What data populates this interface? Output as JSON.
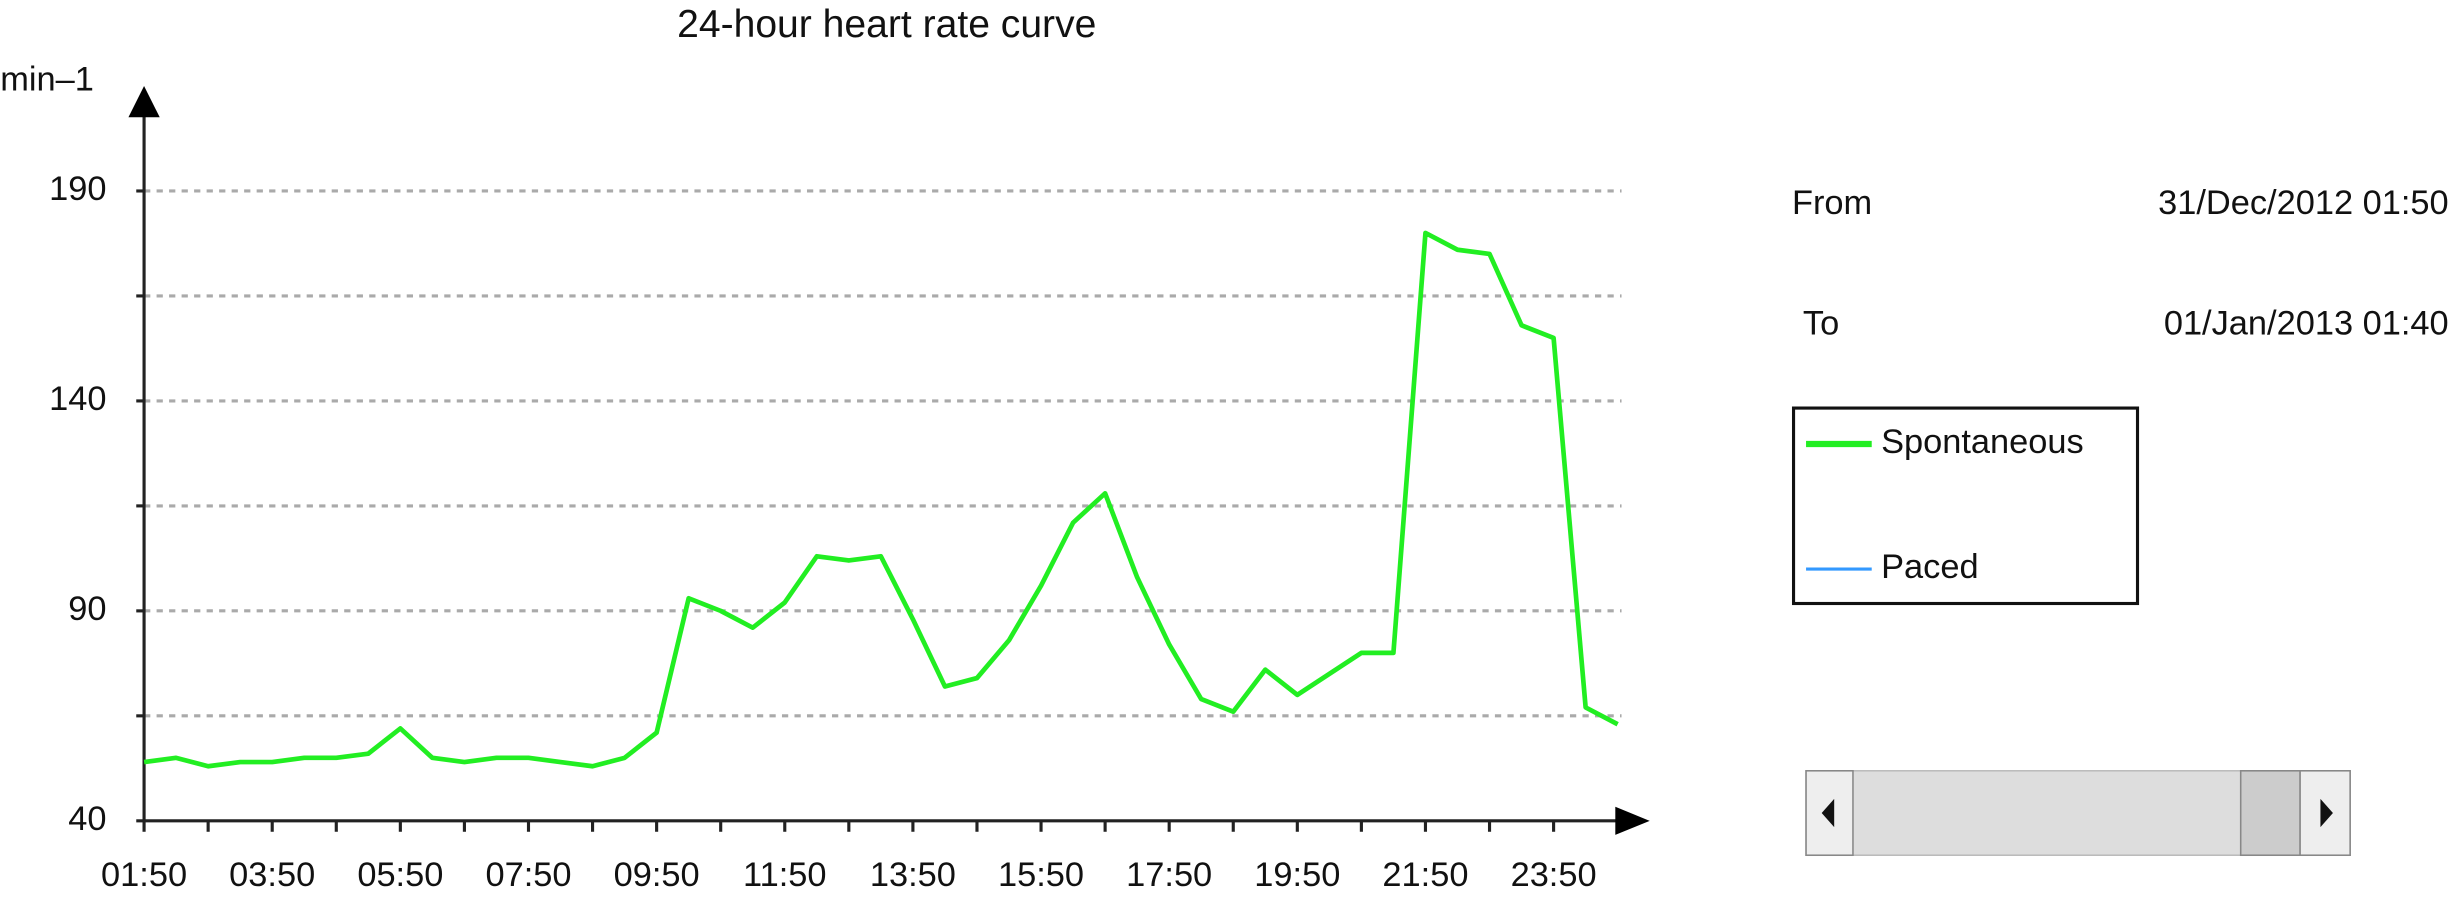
{
  "chart_data": {
    "type": "line",
    "title": "24-hour heart rate curve",
    "y_label": "min–1",
    "x": [
      "01:50",
      "02:20",
      "02:50",
      "03:20",
      "03:50",
      "04:20",
      "04:50",
      "05:20",
      "05:50",
      "06:20",
      "06:50",
      "07:20",
      "07:50",
      "08:20",
      "08:50",
      "09:20",
      "09:50",
      "10:20",
      "10:50",
      "11:20",
      "11:50",
      "12:20",
      "12:50",
      "13:20",
      "13:50",
      "14:20",
      "14:50",
      "15:20",
      "15:50",
      "16:20",
      "16:50",
      "17:20",
      "17:50",
      "18:20",
      "18:50",
      "19:20",
      "19:50",
      "20:20",
      "20:50",
      "21:20",
      "21:50",
      "22:20",
      "22:50",
      "23:20",
      "23:50",
      "00:20",
      "00:50"
    ],
    "series": [
      {
        "name": "Spontaneous",
        "color": "#22ee22",
        "values": [
          54,
          55,
          53,
          54,
          54,
          55,
          55,
          56,
          62,
          55,
          54,
          55,
          55,
          54,
          53,
          55,
          61,
          93,
          90,
          86,
          92,
          103,
          102,
          103,
          88,
          72,
          74,
          83,
          96,
          111,
          118,
          98,
          82,
          69,
          66,
          76,
          70,
          75,
          80,
          80,
          180,
          176,
          175,
          158,
          155,
          67,
          63
        ]
      },
      {
        "name": "Paced",
        "color": "#3399ff",
        "values": [
          null,
          null,
          null,
          null,
          null,
          null,
          null,
          null,
          null,
          null,
          null,
          null,
          null,
          null,
          null,
          null,
          null,
          null,
          null,
          null,
          null,
          null,
          null,
          null,
          null,
          null,
          null,
          null,
          null,
          null,
          null,
          null,
          null,
          null,
          null,
          null,
          null,
          null,
          null,
          null,
          null,
          null,
          null,
          null,
          null,
          null,
          null
        ]
      }
    ],
    "xlim": [
      "01:50",
      "01:20"
    ],
    "xticks": [
      "01:50",
      "03:50",
      "05:50",
      "07:50",
      "09:50",
      "11:50",
      "13:50",
      "15:50",
      "17:50",
      "19:50",
      "21:50",
      "23:50"
    ],
    "ylim": [
      40,
      215
    ],
    "yticks": [
      40,
      90,
      140,
      190
    ],
    "y_minor_ticks": [
      65,
      115,
      165
    ],
    "grid": true,
    "from": {
      "label": "From",
      "value": "31/Dec/2012 01:50"
    },
    "to": {
      "label": "To",
      "value": "01/Jan/2013 01:40"
    }
  }
}
